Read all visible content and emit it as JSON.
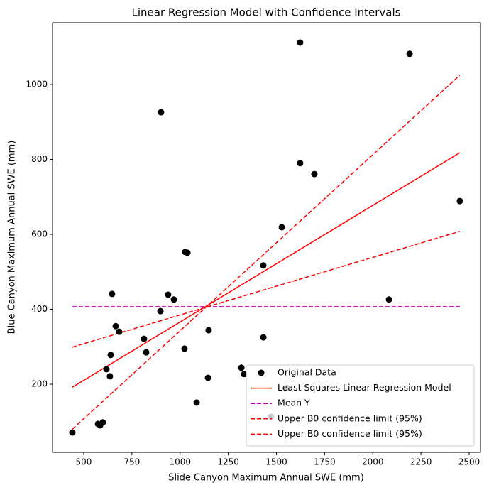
{
  "chart_data": {
    "type": "scatter",
    "title": "Linear Regression Model with Confidence Intervals",
    "xlabel": "Slide Canyon Maximum Annual SWE (mm)",
    "ylabel": "Blue Canyon Maximum Annual SWE (mm)",
    "xlim": [
      338,
      2559
    ],
    "ylim": [
      18,
      1165
    ],
    "xticks": [
      500,
      750,
      1000,
      1250,
      1500,
      1750,
      2000,
      2250,
      2500
    ],
    "yticks": [
      200,
      400,
      600,
      800,
      1000
    ],
    "legend": "lower right",
    "series": [
      {
        "name": "Original Data",
        "type": "scatter",
        "color": "#000000",
        "x": [
          441,
          574,
          585,
          599,
          618,
          636,
          640,
          647,
          666,
          684,
          813,
          824,
          898,
          901,
          938,
          968,
          1023,
          1027,
          1038,
          1086,
          1145,
          1148,
          1318,
          1332,
          1432,
          1432,
          1472,
          1528,
          1553,
          1623,
          1623,
          1697,
          2084,
          2191,
          2452
        ],
        "values": [
          71,
          94,
          90,
          98,
          240,
          221,
          278,
          441,
          355,
          340,
          321,
          285,
          395,
          926,
          439,
          426,
          295,
          553,
          551,
          151,
          217,
          344,
          244,
          227,
          325,
          517,
          113,
          619,
          190,
          790,
          1112,
          761,
          426,
          1082,
          689
        ]
      },
      {
        "name": "Least Squares Linear Regression Model",
        "type": "line",
        "linestyle": "solid",
        "color": "#ff0000",
        "x": [
          441,
          2452
        ],
        "values": [
          192,
          818
        ]
      },
      {
        "name": "Mean Y",
        "type": "line",
        "linestyle": "dashed",
        "color": "#bf00bf",
        "x": [
          441,
          2452
        ],
        "values": [
          407,
          407
        ]
      },
      {
        "name": "Upper B0 confidence limit (95%)",
        "type": "line",
        "linestyle": "dashed",
        "color": "#ff0000",
        "x": [
          441,
          2452
        ],
        "values": [
          299,
          608
        ]
      },
      {
        "name": "Upper B0 confidence limit (95%)",
        "type": "line",
        "linestyle": "dashed",
        "color": "#ff0000",
        "x": [
          441,
          2452
        ],
        "values": [
          80,
          1025
        ]
      }
    ]
  }
}
